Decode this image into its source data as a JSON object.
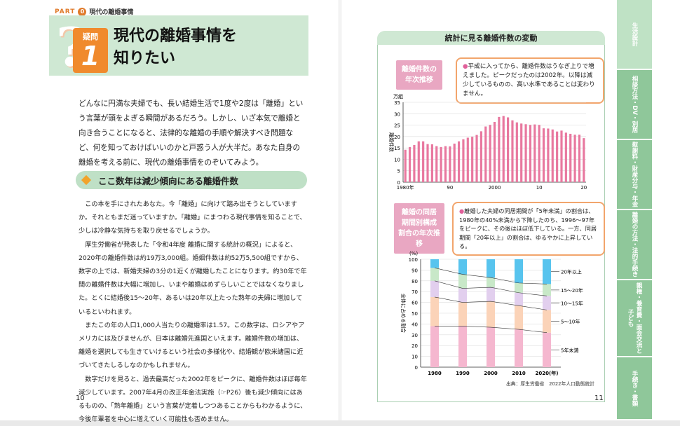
{
  "header": {
    "part_label": "PART",
    "part_num": "0",
    "part_title": "現代の離婚事情"
  },
  "title_block": {
    "q_label": "疑問",
    "q_num": "1",
    "title_line1": "現代の離婚事情を",
    "title_line2": "知りたい"
  },
  "intro_text": "どんなに円満な夫婦でも、長い結婚生活で1度や2度は「離婚」という言葉が頭をよぎる瞬間があるだろう。しかし、いざ本気で離婚と向き合うことになると、法律的な離婚の手順や解決すべき問題など、何を知っておけばいいのかと戸惑う人が大半だ。あなた自身の離婚を考える前に、現代の離婚事情をのぞいてみよう。",
  "section_title": "ここ数年は減少傾向にある離婚件数",
  "body_paragraphs": [
    "この本を手にされたあなた。今「離婚」に向けて踏み出そうとしていますか。それともまだ迷っていますか。「離婚」にまつわる現代事情を知ることで、少しは冷静な気持ちを取り戻せるでしょうか。",
    "厚生労働省が発表した「令和4年度 離婚に関する統計の概況」によると、2020年の離婚件数は約19万3,000組。婚姻件数は約52万5,500組ですから、数字の上では、新婚夫婦の3分の1近くが離婚したことになります。約30年で年間の離婚件数は大幅に増加し、いまや離婚はめずらしいことではなくなりました。とくに結婚後15～20年、あるいは20年以上たった熟年の夫婦に増加しているといわれます。",
    "またこの年の人口1,000人当たりの離婚率は1.57。この数字は、ロシアやアメリカには及びませんが、日本は離婚先進国といえます。離婚件数の増加は、離婚を選択しても生きていけるという社会の多様化や、結婚観が欧米諸国に近づいてきたしるしなのかもしれません。",
    "数字だけを見ると、過去最高だった2002年をピークに、離婚件数はほぼ毎年減少しています。2007年4月の改正年金法実施（☞P26）後も減少傾向にはあるものの、「熟年離婚」という言葉が定着しつつあることからもわかるように、今後年輩者を中心に増えていく可能性も否めません。"
  ],
  "page_numbers": {
    "left": "10",
    "right": "11"
  },
  "stats": {
    "header": "統計に見る離婚件数の変動",
    "label1_line1": "離婚件数の",
    "label1_line2": "年次推移",
    "bubble1": "平成に入ってから、離婚件数はうなぎ上りで増えました。ピークだったのは2002年。以降は減少しているものの、高い水準であることは変わりません。",
    "label2_line1": "離婚の同居",
    "label2_line2": "期間別構成",
    "label2_line3": "割合の年次推移",
    "bubble2": "離婚した夫婦の同居期間が「5年未満」の割合は、1980年の40%未満から下降したのち、1996～97年をピークに、その後はほぼ低下している。一方、同居期間「20年以上」の割合は、ゆるやかに上昇している。",
    "source": "出典：厚生労働省　2022年人口動態統計"
  },
  "chart_data": [
    {
      "type": "bar",
      "title": "離婚件数の年次推移",
      "ylabel": "離婚件数",
      "yunit": "万組",
      "ylim": [
        0,
        35
      ],
      "yticks": [
        0,
        5,
        10,
        15,
        20,
        25,
        30,
        35
      ],
      "x_tick_labels": [
        {
          "label": "1980年",
          "index": 0
        },
        {
          "label": "90",
          "index": 10
        },
        {
          "label": "2000",
          "index": 20
        },
        {
          "label": "10",
          "index": 30
        },
        {
          "label": "20",
          "index": 40
        }
      ],
      "categories": [
        "1980",
        "1981",
        "1982",
        "1983",
        "1984",
        "1985",
        "1986",
        "1987",
        "1988",
        "1989",
        "1990",
        "1991",
        "1992",
        "1993",
        "1994",
        "1995",
        "1996",
        "1997",
        "1998",
        "1999",
        "2000",
        "2001",
        "2002",
        "2003",
        "2004",
        "2005",
        "2006",
        "2007",
        "2008",
        "2009",
        "2010",
        "2011",
        "2012",
        "2013",
        "2014",
        "2015",
        "2016",
        "2017",
        "2018",
        "2019",
        "2020"
      ],
      "values": [
        14.2,
        15.4,
        16.3,
        17.9,
        17.9,
        16.7,
        16.6,
        15.8,
        15.4,
        15.8,
        15.7,
        16.9,
        17.9,
        18.8,
        19.5,
        19.9,
        20.7,
        22.3,
        24.4,
        25.1,
        26.4,
        28.6,
        29.0,
        28.4,
        27.1,
        26.2,
        25.7,
        25.4,
        25.1,
        25.3,
        25.1,
        23.6,
        23.5,
        23.1,
        22.2,
        22.6,
        21.7,
        21.2,
        20.8,
        20.8,
        19.3
      ],
      "bar_color": "#e8789f",
      "grid": true
    },
    {
      "type": "bar",
      "stacked": true,
      "title": "離婚の同居期間別構成割合の年次推移",
      "ylabel": "全体に占める割合",
      "yunit": "(%)",
      "xunit": "(年)",
      "ylim": [
        0,
        100
      ],
      "yticks": [
        0,
        10,
        20,
        30,
        40,
        50,
        60,
        70,
        80,
        90,
        100
      ],
      "categories": [
        "1980",
        "1990",
        "2000",
        "2010",
        "2020"
      ],
      "series": [
        {
          "name": "5年未満",
          "values": [
            38,
            38,
            37,
            35,
            32
          ],
          "color": "#f5b7cf"
        },
        {
          "name": "5～10年",
          "values": [
            27,
            22,
            24,
            22,
            21
          ],
          "color": "#fbd3b8"
        },
        {
          "name": "10～15年",
          "values": [
            15,
            13,
            13,
            12,
            13
          ],
          "color": "#e2cfee"
        },
        {
          "name": "15～20年",
          "values": [
            12,
            13,
            9,
            9,
            11
          ],
          "color": "#c8e8c8"
        },
        {
          "name": "20年以上",
          "values": [
            8,
            14,
            17,
            22,
            23
          ],
          "color": "#58c4ee"
        }
      ]
    }
  ],
  "side_tabs": [
    "生活設計",
    "相談方法・DV・別居",
    "慰謝料・財産分与・年金",
    "離婚の方法・法的手続き",
    "親権・養育費・面会交流と子ども",
    "手続き・書類"
  ]
}
